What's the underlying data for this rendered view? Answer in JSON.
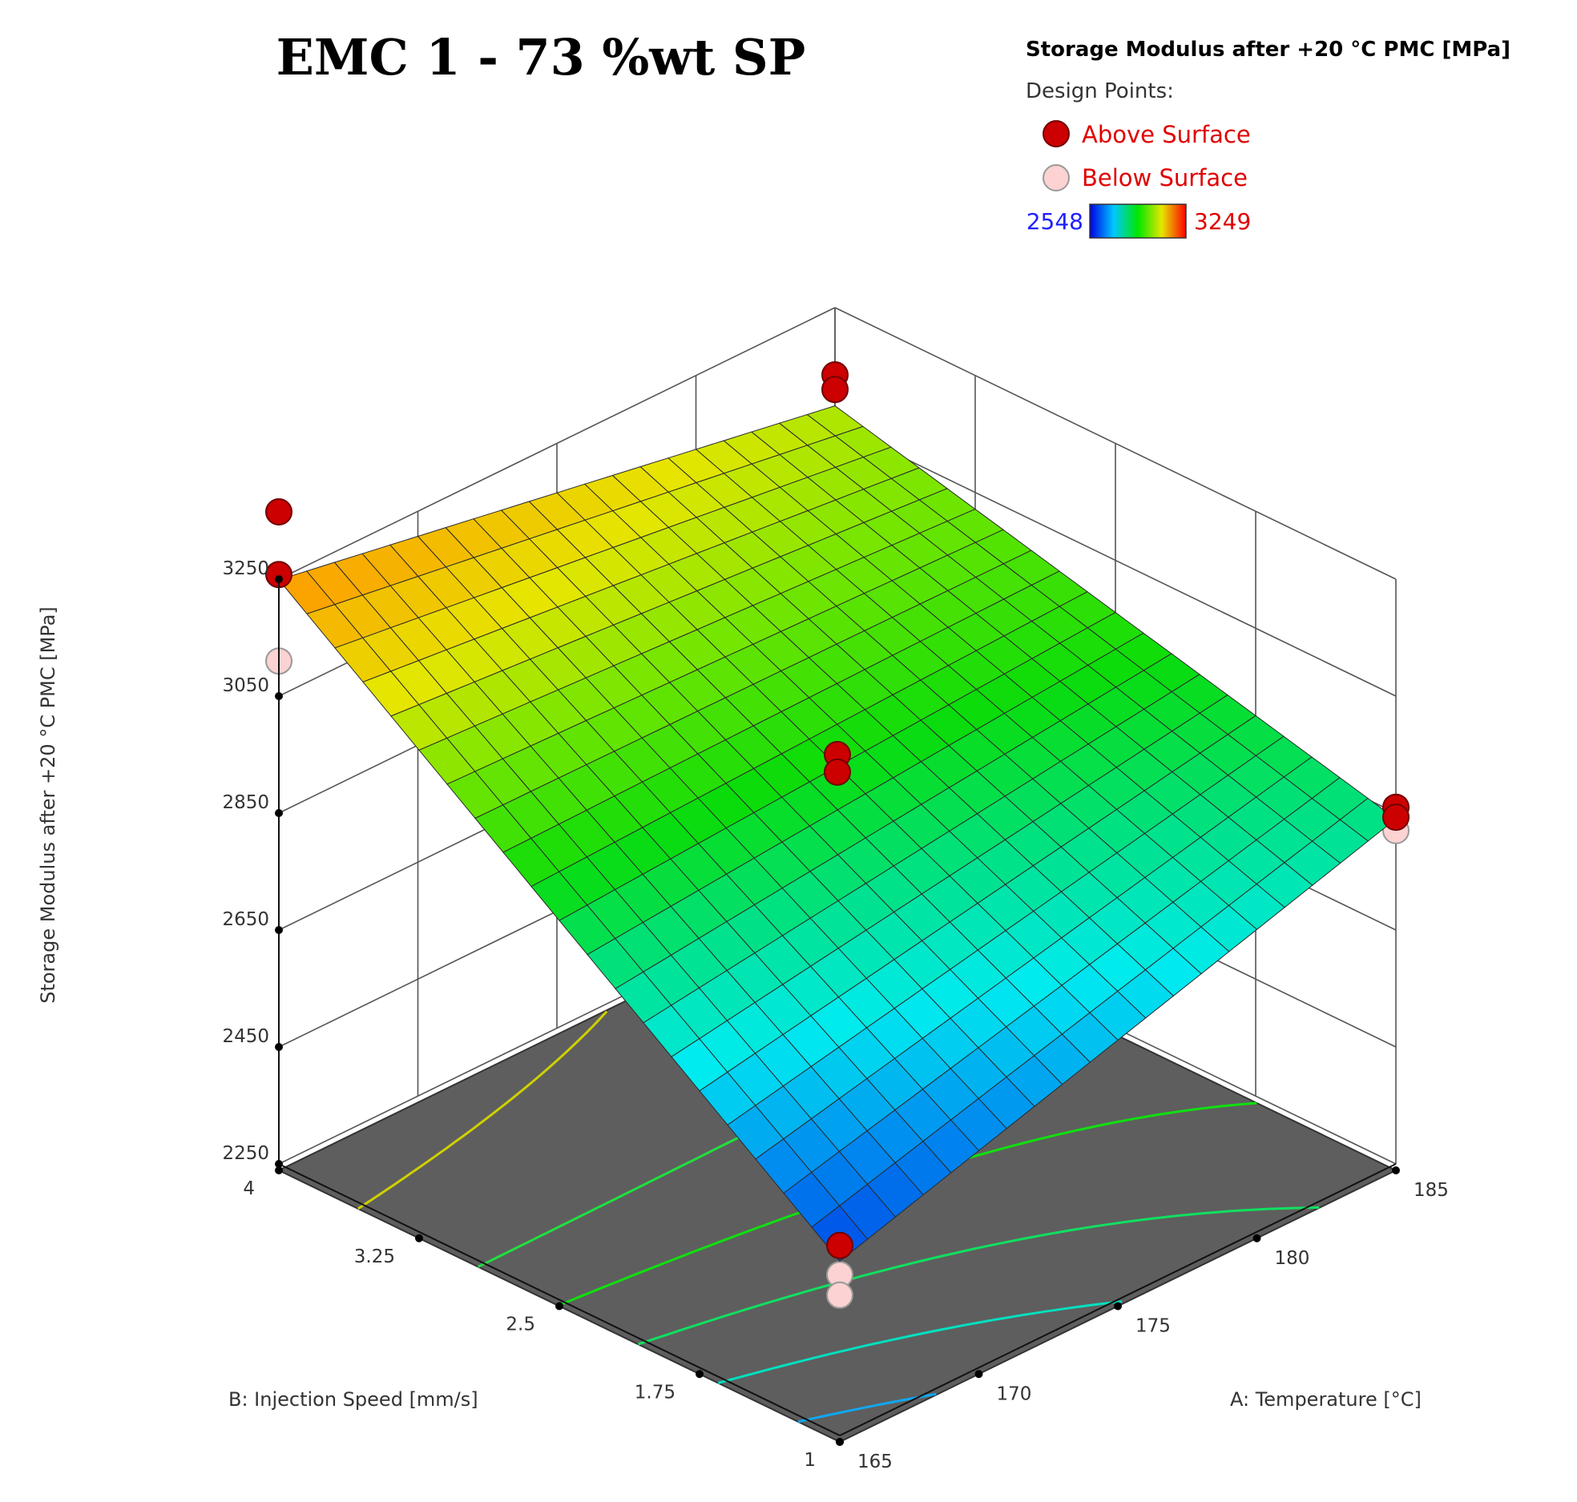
{
  "chart_data": {
    "type": "surface3d",
    "title": "EMC 1 - 73 %wt SP",
    "legend": {
      "title": "Storage Modulus after +20 °C PMC  [MPa]",
      "design_points_label": "Design Points:",
      "above_label": "Above Surface",
      "below_label": "Below Surface",
      "color_min": "2548",
      "color_max": "3249",
      "placement": "top-right"
    },
    "x_axis": {
      "label": "A: Temperature [°C]",
      "range": [
        165,
        185
      ],
      "ticks": [
        "165",
        "170",
        "175",
        "180",
        "185"
      ]
    },
    "y_axis": {
      "label": "B: Injection Speed [mm/s]",
      "range": [
        1,
        4
      ],
      "ticks": [
        "1",
        "1.75",
        "2.5",
        "3.25",
        "4"
      ]
    },
    "z_axis": {
      "label": "Storage Modulus after +20 °C PMC [MPa]",
      "range": [
        2250,
        3250
      ],
      "ticks": [
        "2250",
        "2450",
        "2650",
        "2850",
        "3050",
        "3250"
      ]
    },
    "surface": {
      "corners": [
        {
          "temperature": 165,
          "speed": 1,
          "modulus": 2548
        },
        {
          "temperature": 185,
          "speed": 1,
          "modulus": 2840
        },
        {
          "temperature": 165,
          "speed": 4,
          "modulus": 3249
        },
        {
          "temperature": 185,
          "speed": 4,
          "modulus": 3082
        }
      ],
      "grid_divisions": 20
    },
    "contours": [
      {
        "level": 3150,
        "color": "#d0d000"
      },
      {
        "level": 3000,
        "color": "#20e040"
      },
      {
        "level": 2900,
        "color": "#10e010"
      },
      {
        "level": 2800,
        "color": "#10e060"
      },
      {
        "level": 2700,
        "color": "#00e0c0"
      },
      {
        "level": 2600,
        "color": "#10a8f0"
      }
    ],
    "design_points": [
      {
        "temperature": 165,
        "speed": 1,
        "modulus": 2575,
        "position": "above"
      },
      {
        "temperature": 165,
        "speed": 1,
        "modulus": 2525,
        "position": "below"
      },
      {
        "temperature": 165,
        "speed": 1,
        "modulus": 2490,
        "position": "below"
      },
      {
        "temperature": 185,
        "speed": 1,
        "modulus": 2860,
        "position": "above"
      },
      {
        "temperature": 185,
        "speed": 1,
        "modulus": 2843,
        "position": "above"
      },
      {
        "temperature": 185,
        "speed": 1,
        "modulus": 2820,
        "position": "below"
      },
      {
        "temperature": 165,
        "speed": 4,
        "modulus": 3365,
        "position": "above"
      },
      {
        "temperature": 165,
        "speed": 4,
        "modulus": 3258,
        "position": "above"
      },
      {
        "temperature": 165,
        "speed": 4,
        "modulus": 3110,
        "position": "below"
      },
      {
        "temperature": 185,
        "speed": 4,
        "modulus": 3135,
        "position": "above"
      },
      {
        "temperature": 185,
        "speed": 4,
        "modulus": 3110,
        "position": "above"
      },
      {
        "temperature": 175,
        "speed": 2.5,
        "modulus": 2950,
        "position": "above"
      },
      {
        "temperature": 175,
        "speed": 2.5,
        "modulus": 2920,
        "position": "above"
      }
    ]
  }
}
